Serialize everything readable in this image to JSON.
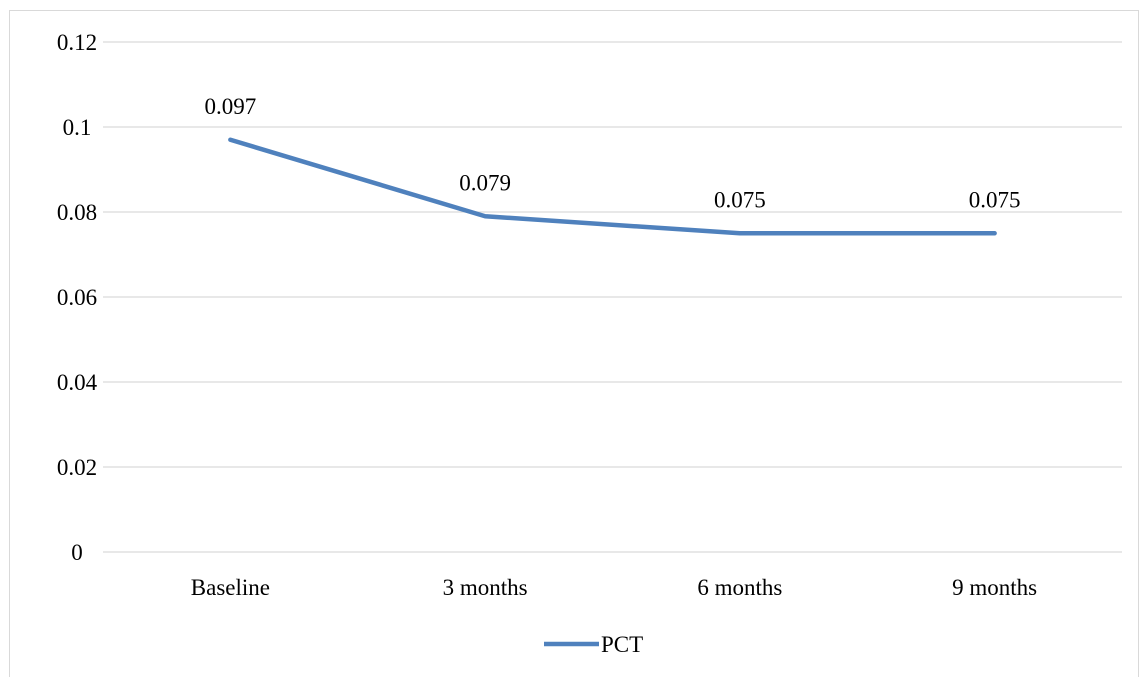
{
  "chart_data": {
    "type": "line",
    "categories": [
      "Baseline",
      "3 months",
      "6 months",
      "9 months"
    ],
    "series": [
      {
        "name": "PCT",
        "values": [
          0.097,
          0.079,
          0.075,
          0.075
        ],
        "color": "#4f81bd"
      }
    ],
    "data_labels": [
      "0.097",
      "0.079",
      "0.075",
      "0.075"
    ],
    "y_ticks": [
      "0",
      "0.02",
      "0.04",
      "0.06",
      "0.08",
      "0.1",
      "0.12"
    ],
    "ylim": [
      0,
      0.12
    ],
    "y_tick_step": 0.02,
    "grid": true,
    "legend_position": "bottom",
    "title": "",
    "xlabel": "",
    "ylabel": ""
  }
}
